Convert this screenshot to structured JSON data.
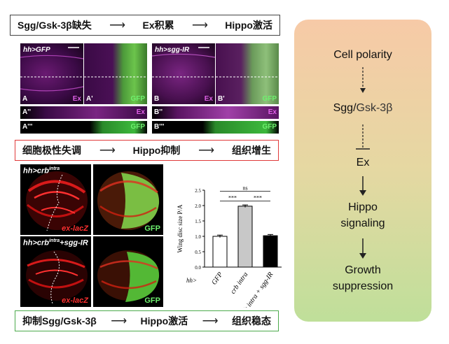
{
  "top_banner": {
    "a": "Sgg/Gsk-3β缺失",
    "b": "Ex积累",
    "c": "Hippo激活"
  },
  "mid_banner": {
    "a": "细胞极性失调",
    "b": "Hippo抑制",
    "c": "组织增生"
  },
  "bottom_banner": {
    "a": "抑制Sgg/Gsk-3β",
    "b": "Hippo激活",
    "c": "组织稳态"
  },
  "arrow": "⟶",
  "panels_top": {
    "A": {
      "genotype": "hh>GFP",
      "letter": "A",
      "channel": "Ex"
    },
    "A1": {
      "letter": "A'",
      "channel": "GFP"
    },
    "B": {
      "genotype": "hh>sgg-IR",
      "letter": "B",
      "channel": "Ex"
    },
    "B1": {
      "letter": "B'",
      "channel": "GFP"
    },
    "A2": {
      "letter": "A''",
      "channel": "Ex"
    },
    "A3": {
      "letter": "A'''",
      "channel": "GFP"
    },
    "B2": {
      "letter": "B''",
      "channel": "Ex"
    },
    "B3": {
      "letter": "B'''",
      "channel": "GFP"
    }
  },
  "panels_bottom": {
    "row1": {
      "genotype": "hh>crb",
      "sup": "intra",
      "stain": "ex-lacZ",
      "gfp": "GFP"
    },
    "row2": {
      "genotype": "hh>crb",
      "sup": "intra",
      "suffix": "+sgg-IR",
      "stain": "ex-lacZ",
      "gfp": "GFP"
    }
  },
  "chart_data": {
    "type": "bar",
    "ylabel": "Wing disc size P/A",
    "categories": [
      "GFP",
      "crb intra",
      "crb intra + sgg-IR"
    ],
    "x_prefix": "hh>",
    "values": [
      1.0,
      1.98,
      1.02
    ],
    "errors": [
      0.04,
      0.04,
      0.04
    ],
    "colors": [
      "#ffffff",
      "#c8c8c8",
      "#000000"
    ],
    "ylim": [
      0,
      2.5
    ],
    "yticks": [
      0,
      0.5,
      1.0,
      1.5,
      2.0,
      2.5
    ],
    "significance": [
      {
        "from": 0,
        "to": 1,
        "label": "***"
      },
      {
        "from": 1,
        "to": 2,
        "label": "***"
      },
      {
        "from": 0,
        "to": 2,
        "label": "ns"
      }
    ]
  },
  "flow": {
    "step1": "Cell polarity",
    "step2a": "Sgg/",
    "step2b": "Gsk-3β",
    "step3": "Ex",
    "step4a": "Hippo",
    "step4b": "signaling",
    "step5a": "Growth",
    "step5b": "suppression"
  }
}
